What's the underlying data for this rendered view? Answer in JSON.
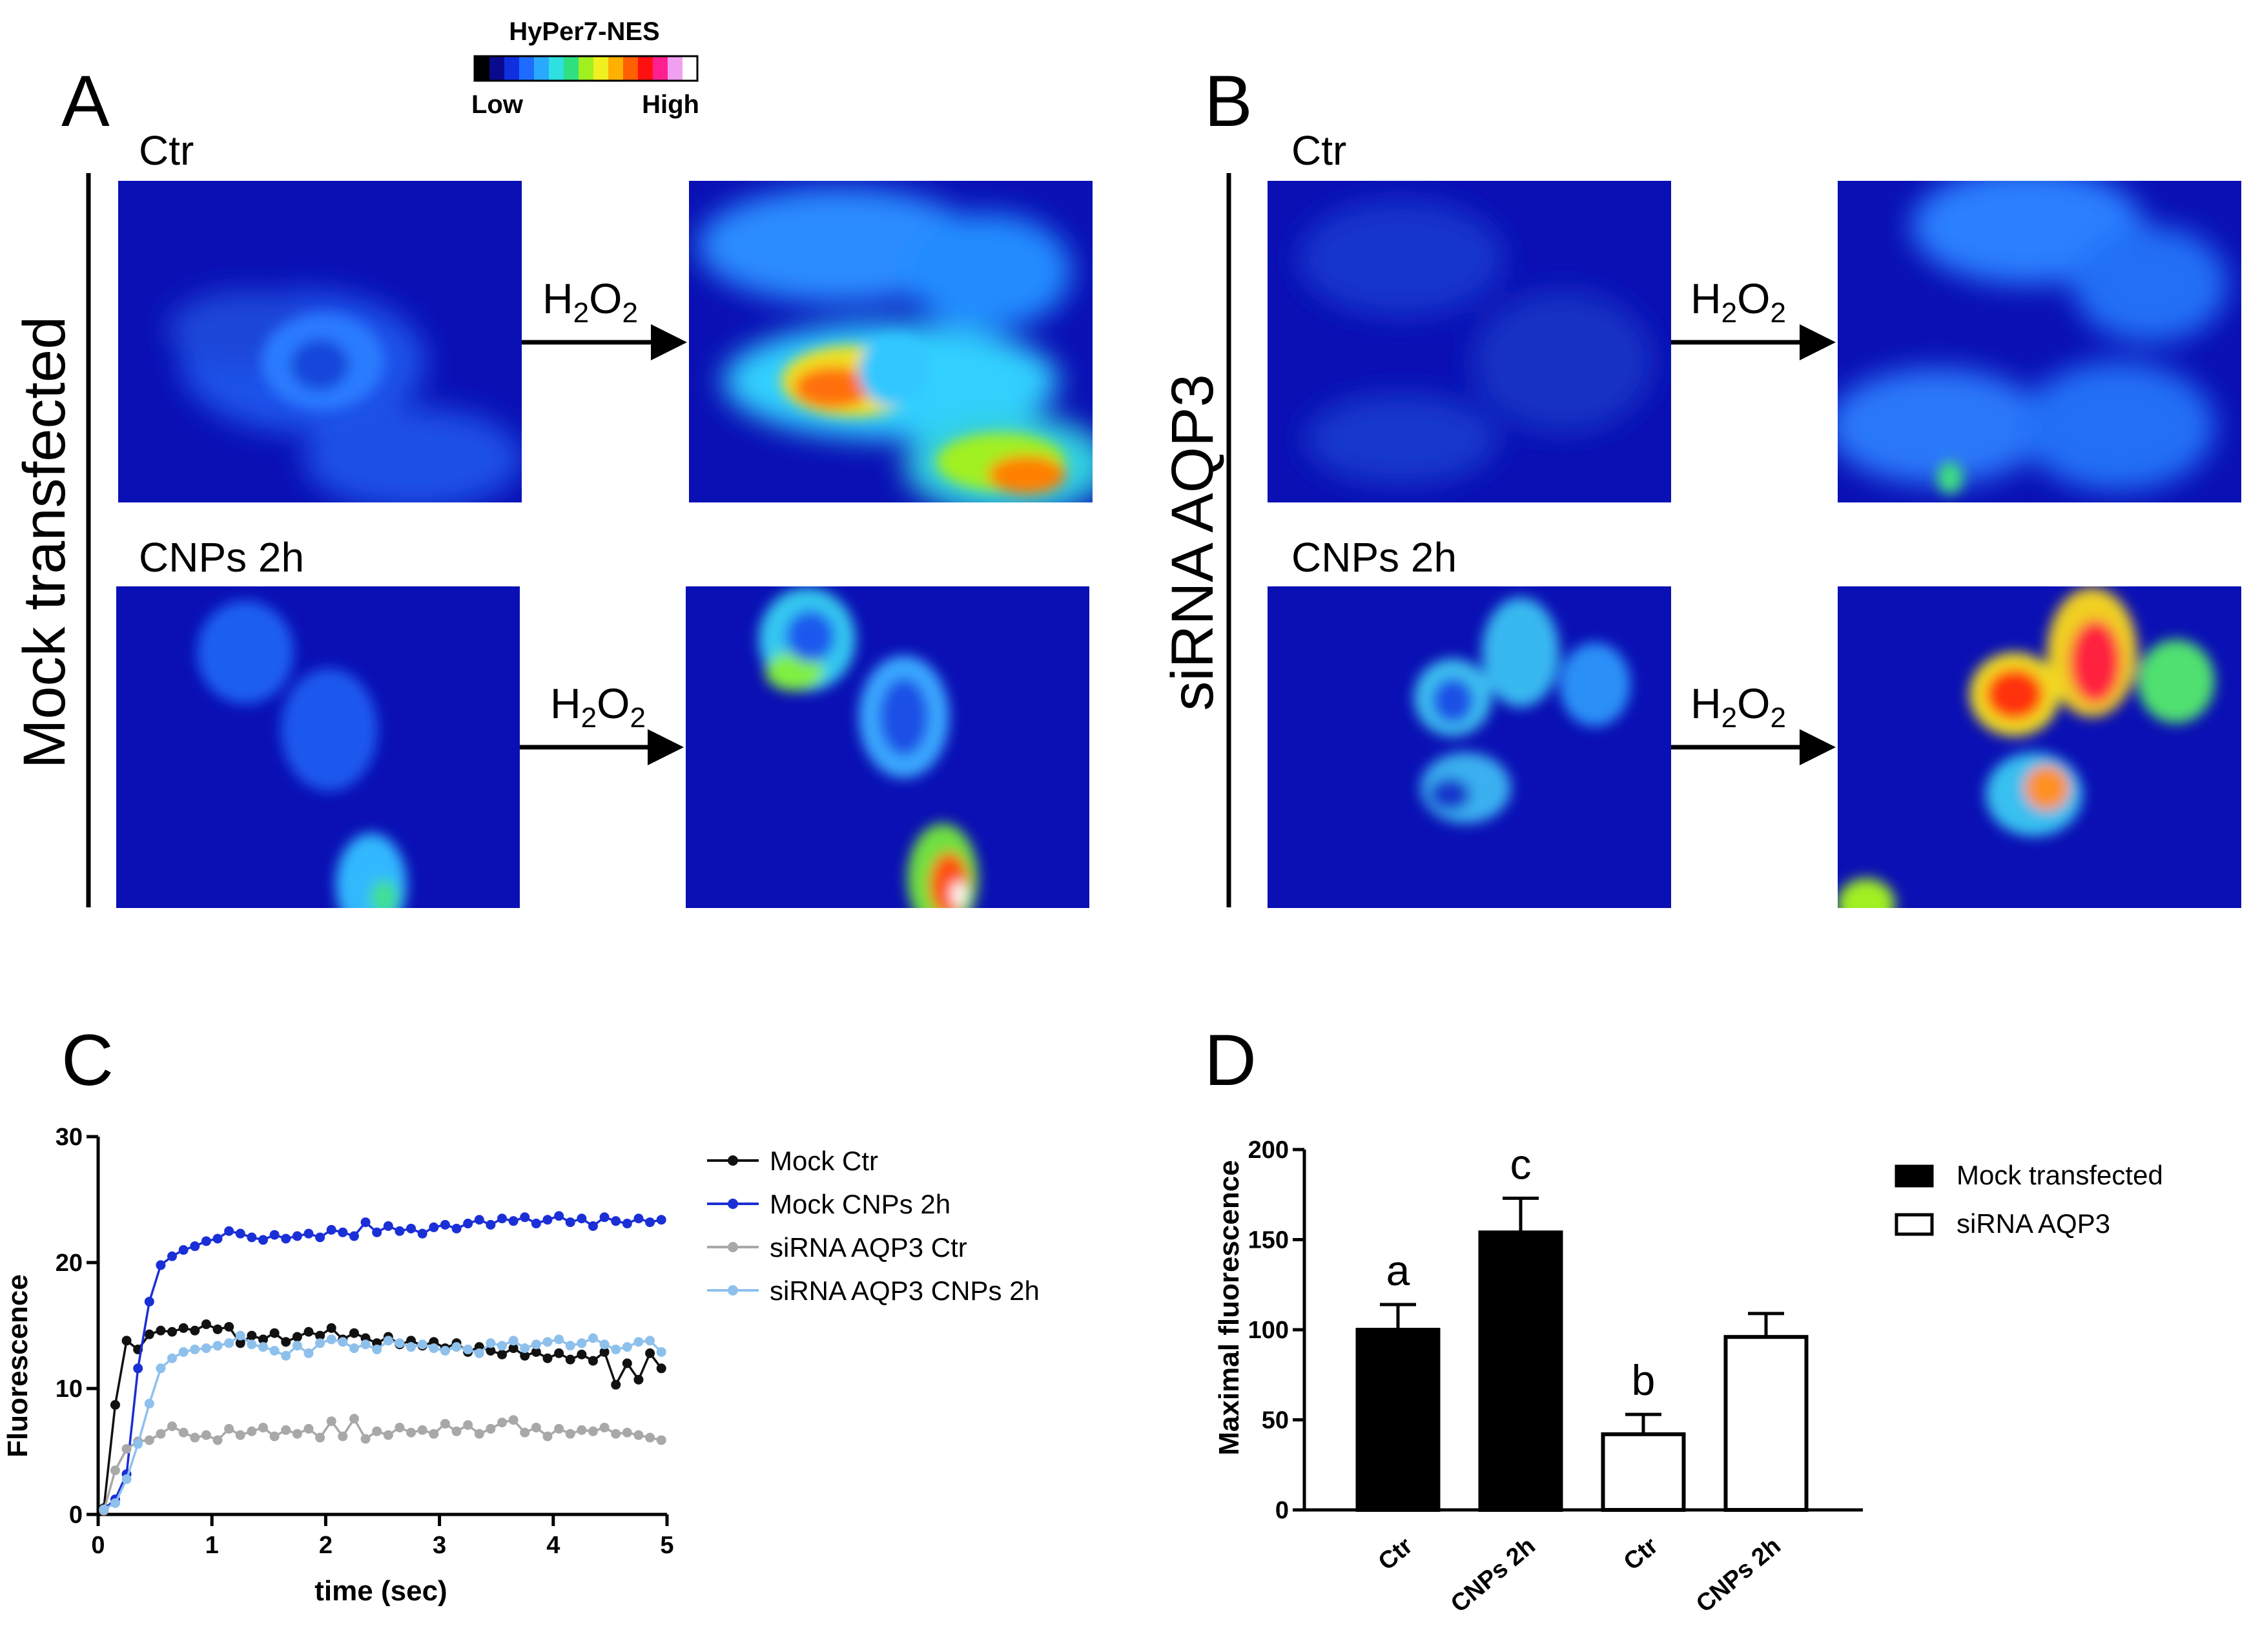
{
  "panels": {
    "A": {
      "letter": "A",
      "side_label": "Mock transfected",
      "rows": [
        {
          "label": "Ctr",
          "treatment": "H",
          "treatment_sub": "2",
          "treatment_o": "O",
          "treatment_sub2": "2"
        },
        {
          "label": "CNPs 2h",
          "treatment": "H",
          "treatment_sub": "2",
          "treatment_o": "O",
          "treatment_sub2": "2"
        }
      ]
    },
    "B": {
      "letter": "B",
      "side_label": "siRNA AQP3",
      "rows": [
        {
          "label": "Ctr",
          "treatment": "H",
          "treatment_sub": "2",
          "treatment_o": "O",
          "treatment_sub2": "2"
        },
        {
          "label": "CNPs 2h",
          "treatment": "H",
          "treatment_sub": "2",
          "treatment_o": "O",
          "treatment_sub2": "2"
        }
      ]
    },
    "C": {
      "letter": "C"
    },
    "D": {
      "letter": "D"
    }
  },
  "colorbar": {
    "title": "HyPer7-NES",
    "low": "Low",
    "high": "High",
    "colors": [
      "#000000",
      "#0a0a8c",
      "#1030e0",
      "#1e6cff",
      "#2aaaff",
      "#2ee0e0",
      "#30e080",
      "#a0f020",
      "#f0f020",
      "#ffb000",
      "#ff6000",
      "#ff1010",
      "#ff2090",
      "#f0a0f0",
      "#ffffff"
    ]
  },
  "chart_data": [
    {
      "type": "line",
      "title": "",
      "xlabel": "time (sec)",
      "ylabel": "Fluorescence",
      "xlim": [
        0,
        5
      ],
      "ylim": [
        0,
        30
      ],
      "xticks": [
        "0",
        "1",
        "2",
        "3",
        "4",
        "5"
      ],
      "yticks": [
        "0",
        "10",
        "20",
        "30"
      ],
      "legend_position": "right",
      "x": [
        0.05,
        0.15,
        0.25,
        0.35,
        0.45,
        0.55,
        0.65,
        0.75,
        0.85,
        0.95,
        1.05,
        1.15,
        1.25,
        1.35,
        1.45,
        1.55,
        1.65,
        1.75,
        1.85,
        1.95,
        2.05,
        2.15,
        2.25,
        2.35,
        2.45,
        2.55,
        2.65,
        2.75,
        2.85,
        2.95,
        3.05,
        3.15,
        3.25,
        3.35,
        3.45,
        3.55,
        3.65,
        3.75,
        3.85,
        3.95,
        4.05,
        4.15,
        4.25,
        4.35,
        4.45,
        4.55,
        4.65,
        4.75,
        4.85,
        4.95
      ],
      "series": [
        {
          "name": "Mock Ctr",
          "color": "#111111",
          "values": [
            0.5,
            8.7,
            13.8,
            13.1,
            14.3,
            14.6,
            14.5,
            14.8,
            14.6,
            15.1,
            14.7,
            14.9,
            13.6,
            14.2,
            13.9,
            14.4,
            13.7,
            14.1,
            14.5,
            14.2,
            14.8,
            13.9,
            14.4,
            14.0,
            13.6,
            14.1,
            13.5,
            13.8,
            13.4,
            13.7,
            13.2,
            13.6,
            12.9,
            13.3,
            13.0,
            12.7,
            13.2,
            12.6,
            12.9,
            12.4,
            12.8,
            12.3,
            12.7,
            12.2,
            12.9,
            10.3,
            12.0,
            10.7,
            12.8,
            11.6
          ]
        },
        {
          "name": "Mock CNPs 2h",
          "color": "#1a2fd6",
          "values": [
            0.4,
            1.2,
            3.2,
            11.6,
            16.9,
            19.8,
            20.5,
            21.0,
            21.3,
            21.7,
            21.9,
            22.5,
            22.3,
            22.0,
            21.8,
            22.2,
            21.9,
            22.1,
            22.3,
            22.0,
            22.6,
            22.4,
            22.1,
            23.2,
            22.4,
            22.9,
            22.5,
            22.7,
            22.3,
            22.8,
            23.0,
            22.7,
            23.1,
            23.4,
            23.0,
            23.5,
            23.3,
            23.6,
            23.1,
            23.4,
            23.7,
            23.2,
            23.5,
            22.9,
            23.6,
            23.3,
            23.1,
            23.5,
            23.2,
            23.4
          ]
        },
        {
          "name": "siRNA AQP3 Ctr",
          "color": "#a8a8a8",
          "values": [
            0.3,
            3.5,
            5.2,
            5.8,
            5.9,
            6.4,
            7.0,
            6.5,
            6.1,
            6.3,
            5.9,
            6.8,
            6.3,
            6.6,
            6.9,
            6.2,
            6.7,
            6.4,
            6.8,
            6.1,
            7.4,
            6.2,
            7.6,
            6.0,
            6.6,
            6.3,
            6.9,
            6.5,
            6.7,
            6.4,
            7.2,
            6.6,
            7.1,
            6.4,
            6.8,
            7.3,
            7.5,
            6.5,
            6.9,
            6.2,
            6.8,
            6.4,
            6.7,
            6.6,
            6.9,
            6.4,
            6.5,
            6.3,
            6.1,
            5.9
          ]
        },
        {
          "name": "siRNA AQP3 CNPs 2h",
          "color": "#8ec0ec",
          "values": [
            0.4,
            0.9,
            2.8,
            5.6,
            8.8,
            11.6,
            12.4,
            12.9,
            13.1,
            13.2,
            13.4,
            13.6,
            14.2,
            13.5,
            13.3,
            13.0,
            12.6,
            13.4,
            12.8,
            13.6,
            13.9,
            13.7,
            13.2,
            13.5,
            13.1,
            13.8,
            13.6,
            13.3,
            13.5,
            13.2,
            13.0,
            13.3,
            13.1,
            12.8,
            13.6,
            13.4,
            13.8,
            13.2,
            13.5,
            13.7,
            13.9,
            13.4,
            13.6,
            14.0,
            13.5,
            13.1,
            13.3,
            13.7,
            13.8,
            12.9
          ]
        }
      ]
    },
    {
      "type": "bar",
      "title": "",
      "xlabel": "",
      "ylabel": "Maximal fluorescence",
      "ylim": [
        0,
        200
      ],
      "yticks": [
        "0",
        "50",
        "100",
        "150",
        "200"
      ],
      "categories": [
        "Ctr",
        "CNPs 2h",
        "Ctr",
        "CNPs 2h"
      ],
      "values": [
        100,
        154,
        42,
        96
      ],
      "errors": [
        14,
        19,
        11,
        13
      ],
      "groups": [
        "Mock transfected",
        "Mock transfected",
        "siRNA AQP3",
        "siRNA AQP3"
      ],
      "significance": [
        "a",
        "c",
        "b",
        ""
      ],
      "legend_position": "top-right",
      "legend": [
        {
          "name": "Mock transfected",
          "fill": "#000000"
        },
        {
          "name": "siRNA AQP3",
          "fill": "#ffffff"
        }
      ]
    }
  ]
}
